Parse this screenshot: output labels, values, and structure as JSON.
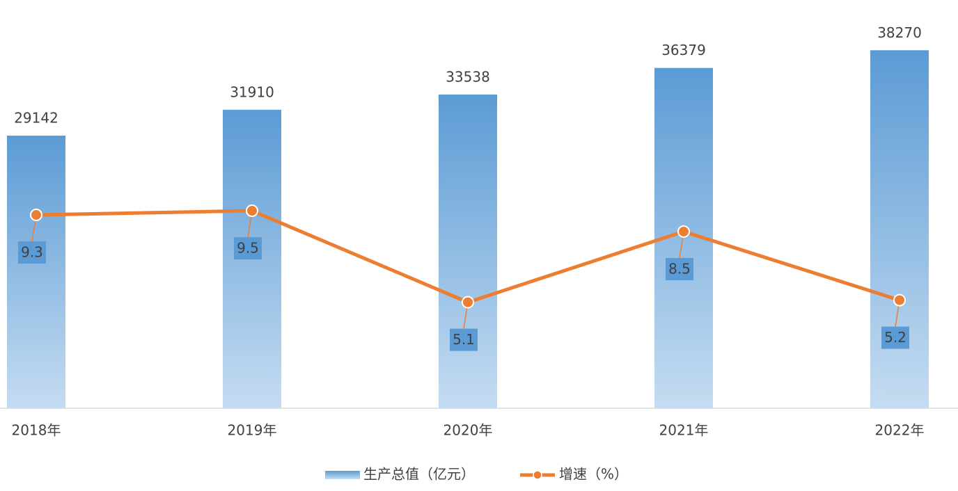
{
  "chart_data": {
    "type": "bar-line",
    "categories": [
      "2018年",
      "2019年",
      "2020年",
      "2021年",
      "2022年"
    ],
    "series": [
      {
        "name": "生产总值（亿元）",
        "type": "bar",
        "color": "#5b9bd5",
        "color_end": "#c5dcf1",
        "values": [
          29142,
          31910,
          33538,
          36379,
          38270
        ]
      },
      {
        "name": "增速（%）",
        "type": "line",
        "axis": "y2",
        "color": "#ed7d31",
        "label_color": "#5b9bd5",
        "values": [
          9.3,
          9.5,
          5.1,
          8.5,
          5.2
        ]
      }
    ],
    "ylim": [
      0,
      40000
    ],
    "y2lim": [
      0,
      18
    ],
    "legend": "bottom"
  }
}
